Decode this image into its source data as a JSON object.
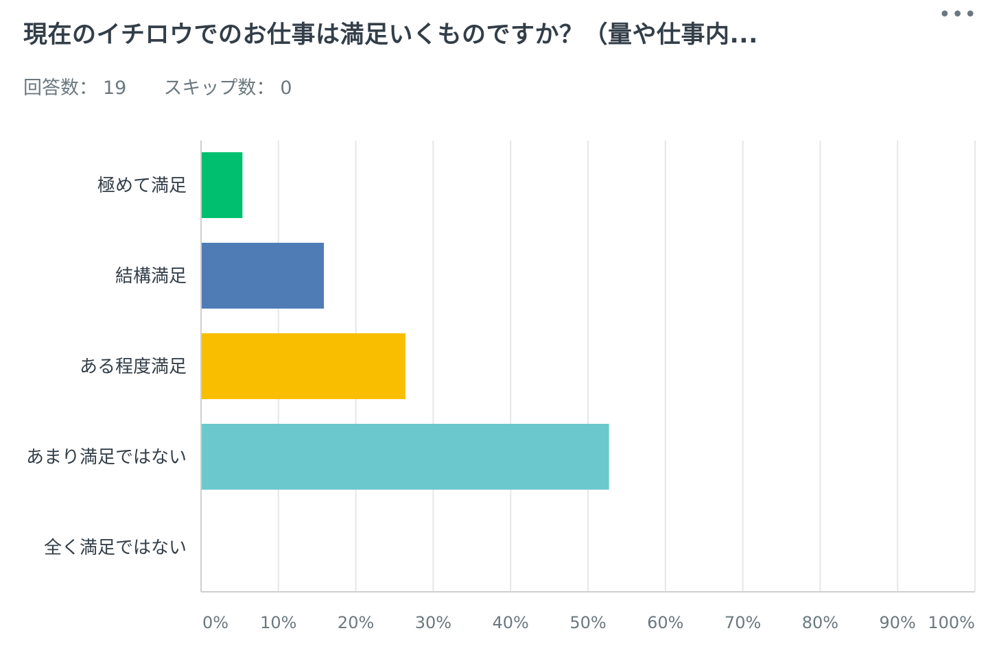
{
  "header": {
    "title": "現在のイチロウでのお仕事は満足いくものですか？（量や仕事内...",
    "menu_icon": "ellipsis-icon",
    "answered_label": "回答数：",
    "answered_value": "19",
    "skipped_label": "スキップ数：",
    "skipped_value": "0"
  },
  "chart_data": {
    "type": "bar",
    "orientation": "horizontal",
    "categories": [
      "極めて満足",
      "結構満足",
      "ある程度満足",
      "あまり満足ではない",
      "全く満足ではない"
    ],
    "values": [
      5.26,
      15.79,
      26.32,
      52.63,
      0
    ],
    "colors": [
      "#00bf6f",
      "#507cb6",
      "#f9be00",
      "#6bc8cd",
      "#ff8b4f"
    ],
    "xlim": [
      0,
      100
    ],
    "x_ticks": [
      "0%",
      "10%",
      "20%",
      "30%",
      "40%",
      "50%",
      "60%",
      "70%",
      "80%",
      "90%",
      "100%"
    ],
    "grid": true,
    "xlabel": "",
    "ylabel": ""
  }
}
